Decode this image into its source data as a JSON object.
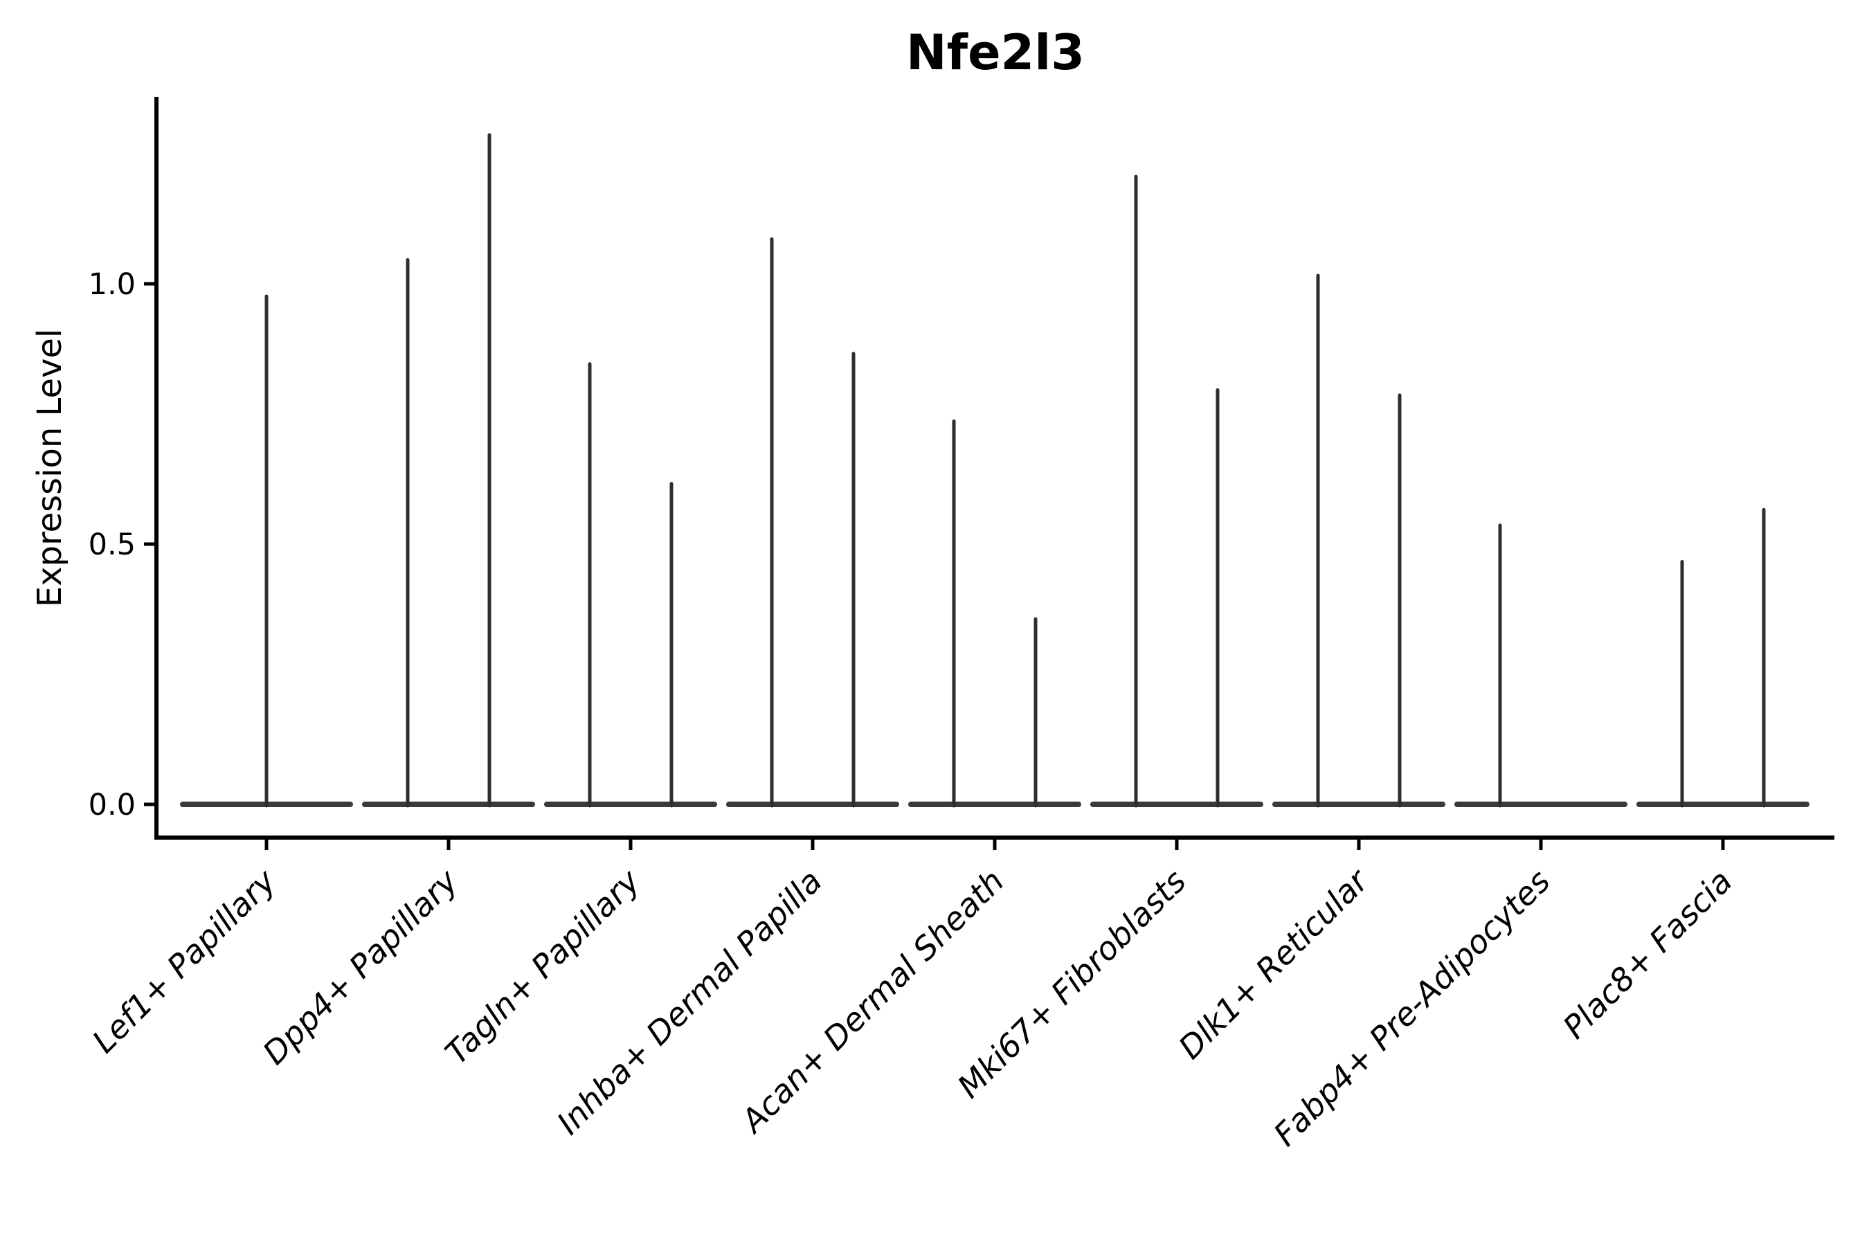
{
  "title": "Nfe2l3",
  "chart_data": {
    "type": "violin",
    "title": "Nfe2l3",
    "xlabel": "",
    "ylabel": "Expression Level",
    "ylim": [
      -0.064,
      1.36
    ],
    "yticks": [
      0.0,
      0.5,
      1.0
    ],
    "ytick_labels": [
      "0.0",
      "0.5",
      "1.0"
    ],
    "grid": false,
    "legend_position": "none",
    "x_tick_label_rotation_deg": 45,
    "x_tick_label_style": "italic",
    "description": "Violin plot of Nfe2l3 expression; each violin is collapsed to a flat line at 0 with a thin density spike rising to the maximum expression value. Most categories contain a left and right sub-violin spike.",
    "categories": [
      "Lef1+ Papillary",
      "Dpp4+ Papillary",
      "Tagln+ Papillary",
      "Inhba+ Dermal Papilla",
      "Acan+ Dermal Sheath",
      "Mki67+ Fibroblasts",
      "Dlk1+ Reticular",
      "Fabp4+ Pre-Adipocytes",
      "Plac8+ Fascia"
    ],
    "series": [
      {
        "category": "Lef1+ Papillary",
        "violins": [
          {
            "position": "center",
            "max_expression": 0.98
          }
        ]
      },
      {
        "category": "Dpp4+ Papillary",
        "violins": [
          {
            "position": "left",
            "max_expression": 1.05
          },
          {
            "position": "right",
            "max_expression": 1.29
          }
        ]
      },
      {
        "category": "Tagln+ Papillary",
        "violins": [
          {
            "position": "left",
            "max_expression": 0.85
          },
          {
            "position": "right",
            "max_expression": 0.62
          }
        ]
      },
      {
        "category": "Inhba+ Dermal Papilla",
        "violins": [
          {
            "position": "left",
            "max_expression": 1.09
          },
          {
            "position": "right",
            "max_expression": 0.87
          }
        ]
      },
      {
        "category": "Acan+ Dermal Sheath",
        "violins": [
          {
            "position": "left",
            "max_expression": 0.74
          },
          {
            "position": "right",
            "max_expression": 0.36
          }
        ]
      },
      {
        "category": "Mki67+ Fibroblasts",
        "violins": [
          {
            "position": "left",
            "max_expression": 1.21
          },
          {
            "position": "right",
            "max_expression": 0.8
          }
        ]
      },
      {
        "category": "Dlk1+ Reticular",
        "violins": [
          {
            "position": "left",
            "max_expression": 1.02
          },
          {
            "position": "right",
            "max_expression": 0.79
          }
        ]
      },
      {
        "category": "Fabp4+ Pre-Adipocytes",
        "violins": [
          {
            "position": "left",
            "max_expression": 0.54
          }
        ]
      },
      {
        "category": "Plac8+ Fascia",
        "violins": [
          {
            "position": "left",
            "max_expression": 0.47
          },
          {
            "position": "right",
            "max_expression": 0.57
          }
        ]
      }
    ],
    "colors": {
      "axis": "#000000",
      "text": "#000000",
      "violin_spike": "#2e2e2e",
      "violin_baseline": "#3a3a3a",
      "background": "#ffffff"
    }
  }
}
